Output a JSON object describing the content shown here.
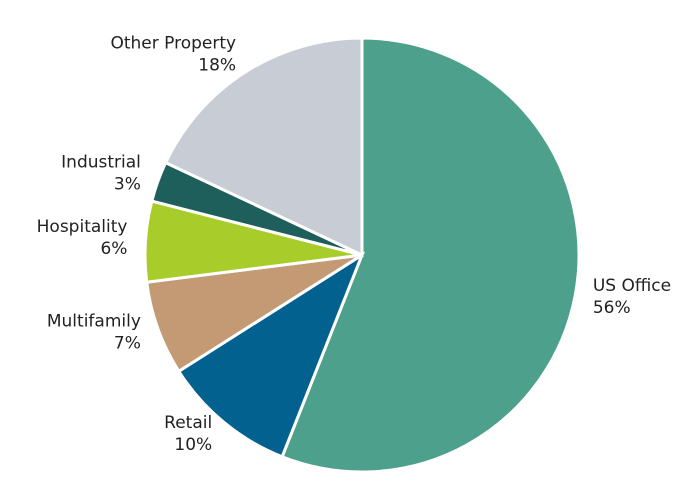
{
  "chart_data": {
    "type": "pie",
    "categories": [
      "US Office",
      "Retail",
      "Multifamily",
      "Hospitality",
      "Industrial",
      "Other Property"
    ],
    "values": [
      56,
      10,
      7,
      6,
      3,
      18
    ],
    "value_labels": [
      "56%",
      "10%",
      "7%",
      "6%",
      "3%",
      "18%"
    ],
    "colors": [
      "#4da08b",
      "#03618f",
      "#c49a74",
      "#a8cd2a",
      "#1e5f5c",
      "#c8ccd4"
    ]
  }
}
